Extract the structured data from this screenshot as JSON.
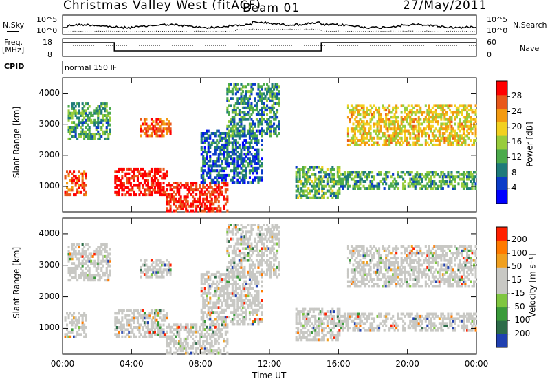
{
  "header": {
    "title": "Christmas Valley West (fitACF)",
    "beam": "Beam 01",
    "date": "27/May/2011"
  },
  "top_panels": {
    "nsky_label": "N.Sky",
    "nsky_ticks": [
      "10^5",
      "10^0"
    ],
    "nsearch_label": "N.Search",
    "freq_label": "Freq.",
    "freq_unit": "[MHz]",
    "freq_ticks": [
      "18",
      "8"
    ],
    "nave_label": "Nave",
    "nave_ticks": [
      "60",
      "0"
    ],
    "right_ticks_top": [
      "10^5",
      "10^0"
    ],
    "cpid_label": "CPID",
    "cpid_value": "normal 150 IF"
  },
  "chart_data": [
    {
      "type": "heatmap",
      "name": "power",
      "ylabel": "Slant Range [km]",
      "xlabel": "Time UT",
      "yticks": [
        "1000",
        "2000",
        "3000",
        "4000"
      ],
      "ylim": [
        180,
        4500
      ],
      "xlim": [
        0,
        24
      ],
      "colorbar_label": "Power [dB]",
      "colorbar_ticks": [
        "28",
        "24",
        "20",
        "16",
        "12",
        "8",
        "4"
      ],
      "colorbar_colors": [
        "#0000ff",
        "#0b3cc8",
        "#1e7a7a",
        "#4caa4c",
        "#98cc3c",
        "#f2d020",
        "#f39a10",
        "#e8581a",
        "#ff0000"
      ]
    },
    {
      "type": "heatmap",
      "name": "velocity",
      "ylabel": "Slant Range [km]",
      "xlabel": "Time UT",
      "xticks": [
        "00:00",
        "04:00",
        "08:00",
        "12:00",
        "16:00",
        "20:00",
        "00:00"
      ],
      "yticks": [
        "1000",
        "2000",
        "3000",
        "4000"
      ],
      "ylim": [
        180,
        4500
      ],
      "xlim": [
        0,
        24
      ],
      "colorbar_label": "Velocity [m s⁻¹]",
      "colorbar_ticks": [
        "200",
        "100",
        "50",
        "15",
        "-15",
        "-50",
        "-100",
        "-200"
      ],
      "colorbar_colors": [
        "#2040b0",
        "#2d6b48",
        "#3a9a3a",
        "#7fc640",
        "#c8c8c4",
        "#c8c8c4",
        "#f0a020",
        "#ff7a00",
        "#ff2000"
      ]
    }
  ],
  "colors": {
    "axis": "#000000",
    "background": "#ffffff"
  }
}
